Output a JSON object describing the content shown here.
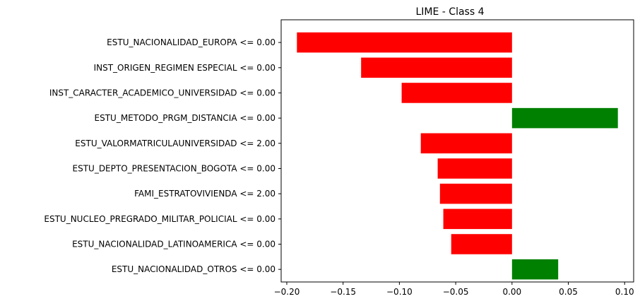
{
  "chart_data": {
    "type": "bar",
    "orientation": "horizontal",
    "title": "LIME - Class 4",
    "xlabel": "",
    "ylabel": "",
    "categories": [
      "ESTU_NACIONALIDAD_EUROPA <= 0.00",
      "INST_ORIGEN_REGIMEN ESPECIAL <= 0.00",
      "INST_CARACTER_ACADEMICO_UNIVERSIDAD <= 0.00",
      "ESTU_METODO_PRGM_DISTANCIA <= 0.00",
      "ESTU_VALORMATRICULAUNIVERSIDAD <= 2.00",
      "ESTU_DEPTO_PRESENTACION_BOGOTA <= 0.00",
      "FAMI_ESTRATOVIVIENDA <= 2.00",
      "ESTU_NUCLEO_PREGRADO_MILITAR_POLICIAL <= 0.00",
      "ESTU_NACIONALIDAD_LATINOAMERICA <= 0.00",
      "ESTU_NACIONALIDAD_OTROS <= 0.00"
    ],
    "values": [
      -0.191,
      -0.134,
      -0.098,
      0.094,
      -0.081,
      -0.066,
      -0.064,
      -0.061,
      -0.054,
      0.041
    ],
    "xlim": [
      -0.205,
      0.108
    ],
    "xticks": [
      -0.2,
      -0.15,
      -0.1,
      -0.05,
      0.0,
      0.05,
      0.1
    ],
    "xtick_labels": [
      "−0.20",
      "−0.15",
      "−0.10",
      "−0.05",
      "0.00",
      "0.05",
      "0.10"
    ],
    "grid": false,
    "colors": {
      "positive": "#008000",
      "negative": "#ff0000"
    }
  }
}
